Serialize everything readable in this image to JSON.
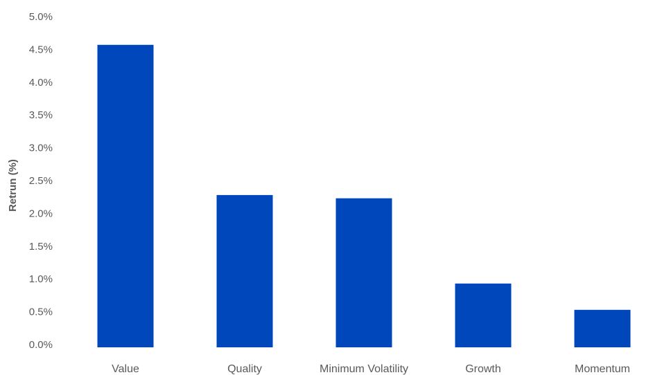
{
  "chart_data": {
    "type": "bar",
    "title": "",
    "xlabel": "",
    "ylabel": "Retrun (%)",
    "categories": [
      "Value",
      "Quality",
      "Minimum Volatility",
      "Growth",
      "Momentum"
    ],
    "values": [
      4.57,
      2.28,
      2.23,
      0.93,
      0.53
    ],
    "ylim": [
      0,
      5
    ],
    "yticks": [
      0,
      0.5,
      1,
      1.5,
      2,
      2.5,
      3,
      3.5,
      4,
      4.5,
      5
    ],
    "ytick_labels": [
      "0.0%",
      "0.5%",
      "1.0%",
      "1.5%",
      "2.0%",
      "2.5%",
      "3.0%",
      "3.5%",
      "4.0%",
      "4.5%",
      "5.0%"
    ],
    "grid": false,
    "legend": "none",
    "bar_color": "#0047BB"
  }
}
